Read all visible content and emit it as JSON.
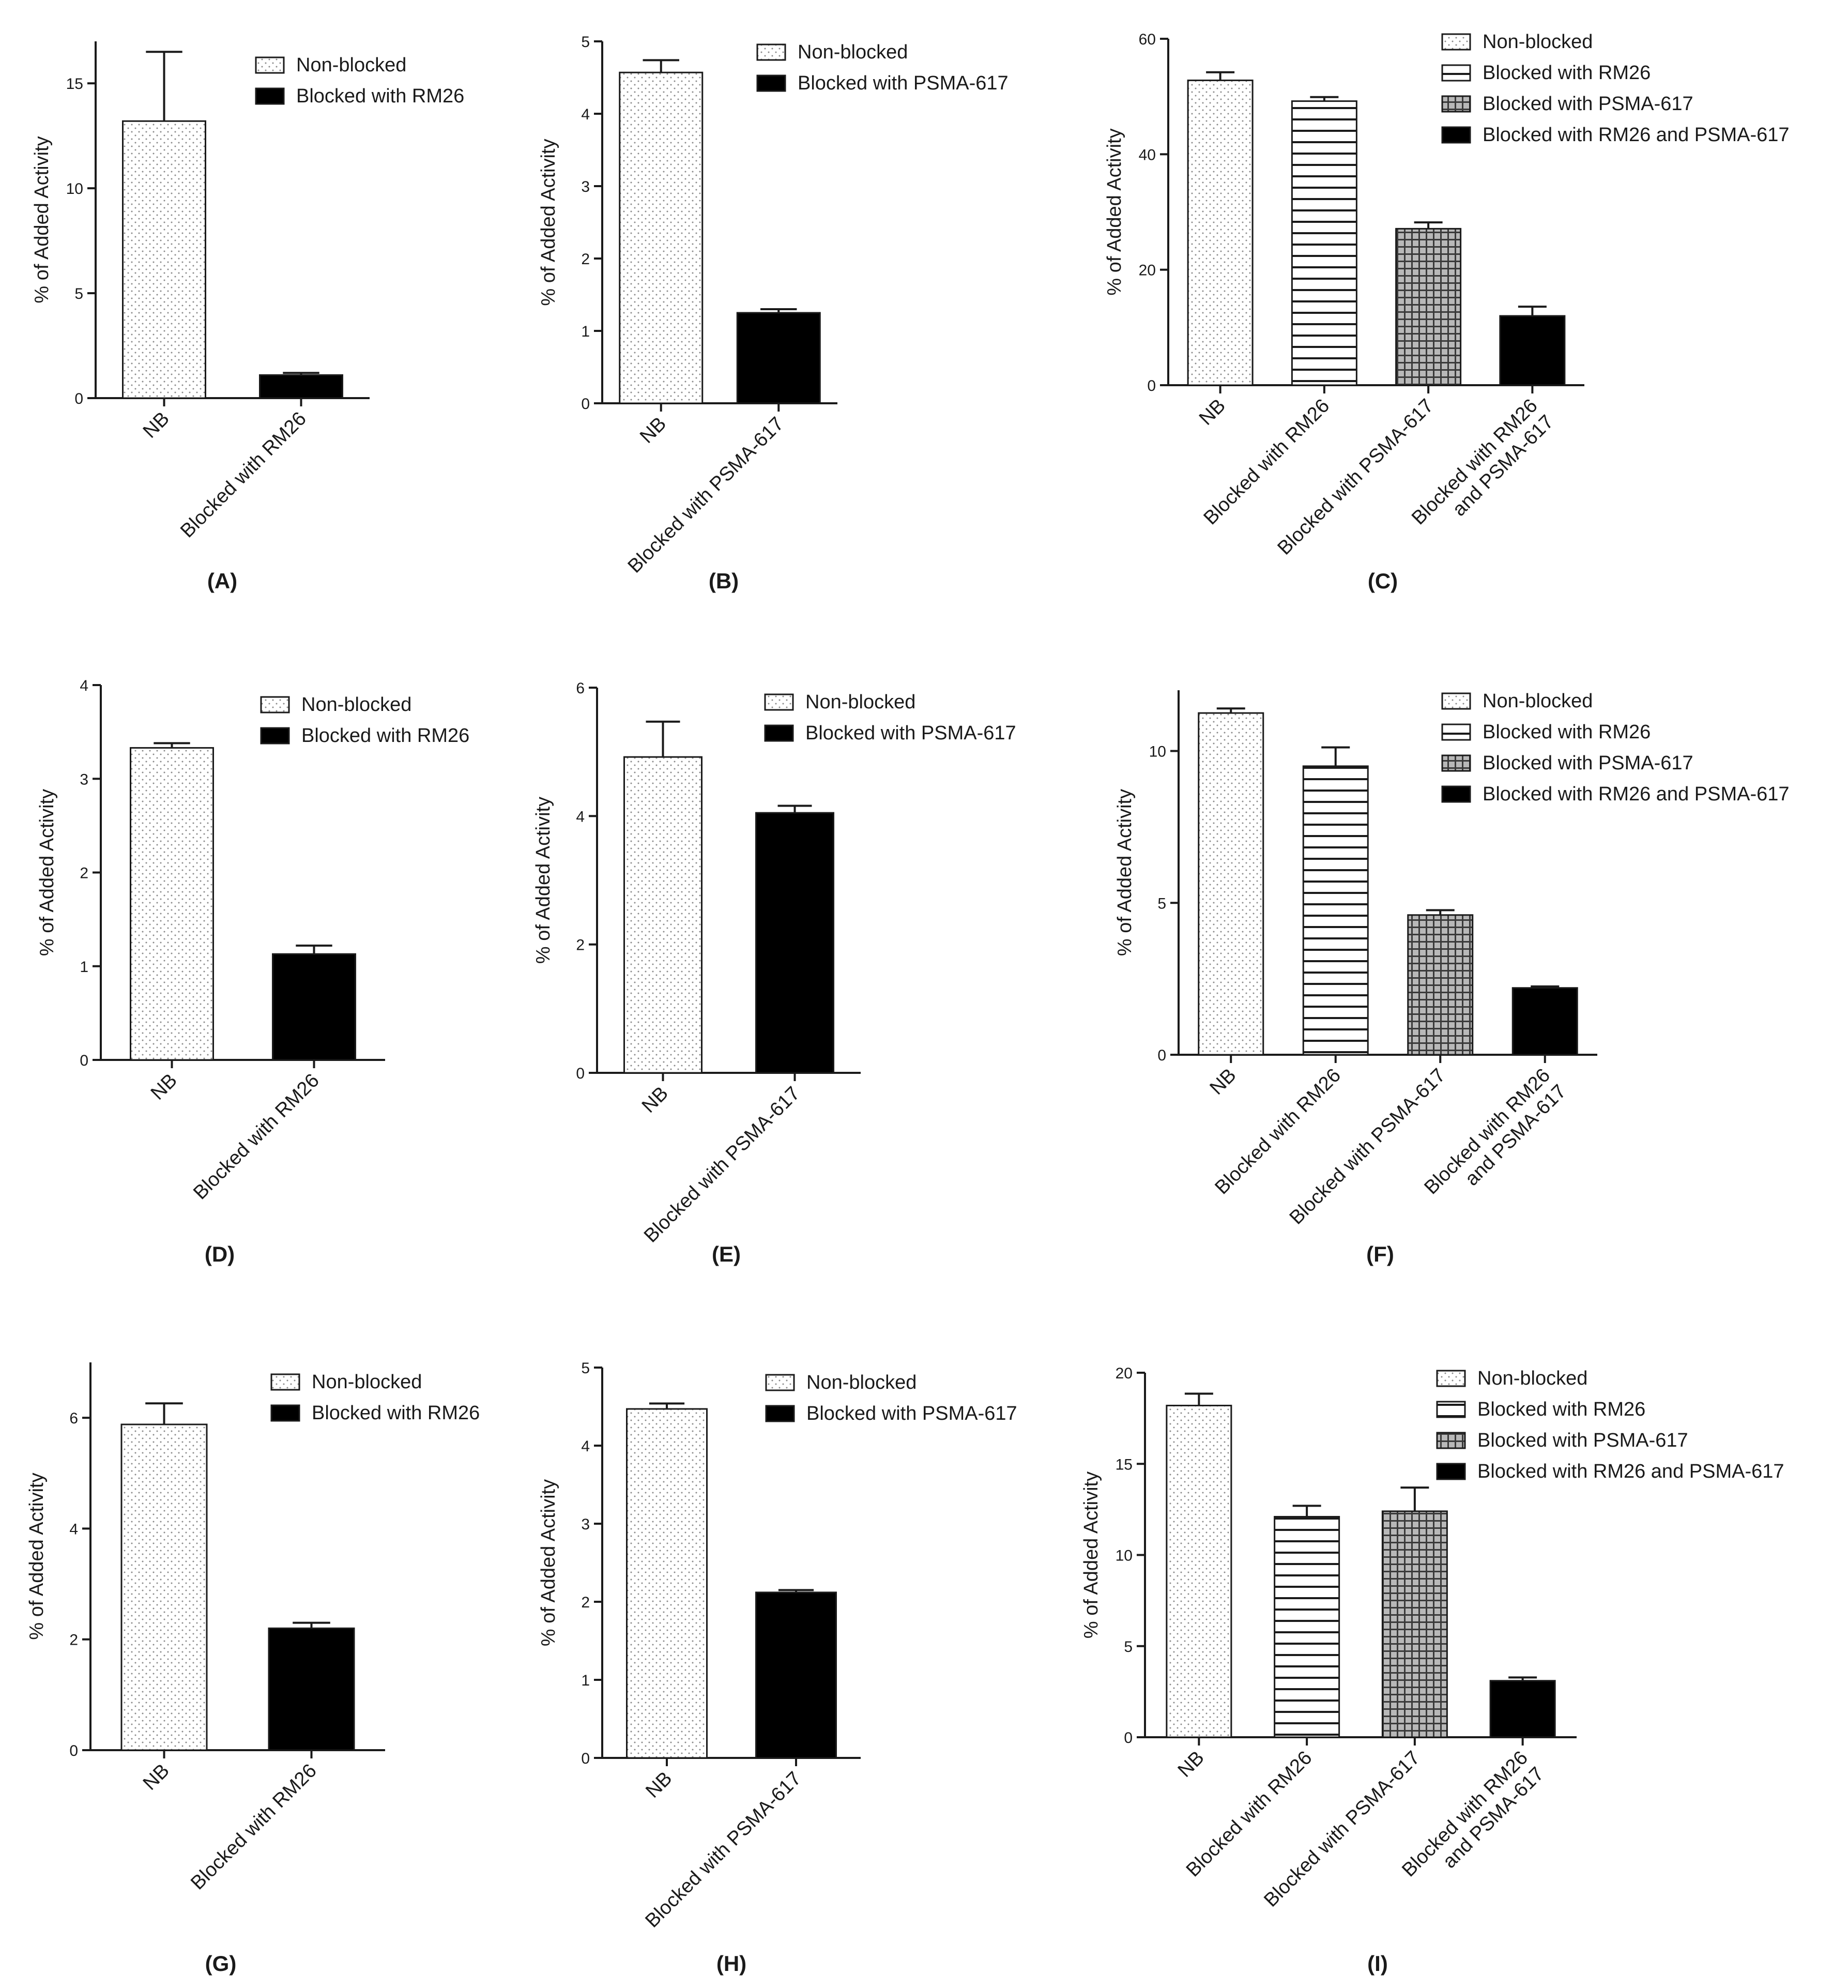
{
  "figure": {
    "panels": [
      "(A)",
      "(B)",
      "(C)",
      "(D)",
      "(E)",
      "(F)",
      "(G)",
      "(H)",
      "(I)"
    ]
  },
  "chart_data": [
    {
      "panel": "(A)",
      "type": "bar",
      "ylabel": "% of Added Activity",
      "ylim": [
        0,
        17
      ],
      "yticks": [
        0,
        5,
        10,
        15
      ],
      "categories": [
        [
          "NB"
        ],
        [
          "Blocked with RM26"
        ]
      ],
      "values": [
        13.2,
        1.1
      ],
      "errors": [
        3.3,
        0.1
      ],
      "fills": [
        "dots",
        "solid"
      ],
      "legend": [
        {
          "label": "Non-blocked",
          "fill": "dots"
        },
        {
          "label": "Blocked with RM26",
          "fill": "solid"
        }
      ]
    },
    {
      "panel": "(B)",
      "type": "bar",
      "ylabel": "% of Added Activity",
      "ylim": [
        0,
        5
      ],
      "yticks": [
        0,
        1,
        2,
        3,
        4,
        5
      ],
      "categories": [
        [
          "NB"
        ],
        [
          "Blocked with PSMA-617"
        ]
      ],
      "values": [
        4.57,
        1.25
      ],
      "errors": [
        0.17,
        0.05
      ],
      "fills": [
        "dots",
        "solid"
      ],
      "legend": [
        {
          "label": "Non-blocked",
          "fill": "dots"
        },
        {
          "label": "Blocked with PSMA-617",
          "fill": "solid"
        }
      ]
    },
    {
      "panel": "(C)",
      "type": "bar",
      "ylabel": "% of Added Activity",
      "ylim": [
        0,
        60
      ],
      "yticks": [
        0,
        20,
        40,
        60
      ],
      "categories": [
        [
          "NB"
        ],
        [
          "Blocked with RM26"
        ],
        [
          "Blocked with PSMA-617"
        ],
        [
          "Blocked with RM26",
          "and PSMA-617"
        ]
      ],
      "values": [
        52.8,
        49.2,
        27.1,
        12.0
      ],
      "errors": [
        1.4,
        0.7,
        1.1,
        1.6
      ],
      "fills": [
        "dots",
        "hlines",
        "grid",
        "solid"
      ],
      "legend": [
        {
          "label": "Non-blocked",
          "fill": "dots"
        },
        {
          "label": "Blocked with RM26",
          "fill": "hlines"
        },
        {
          "label": "Blocked with PSMA-617",
          "fill": "grid"
        },
        {
          "label": "Blocked with RM26 and PSMA-617",
          "fill": "solid"
        }
      ]
    },
    {
      "panel": "(D)",
      "type": "bar",
      "ylabel": "% of Added Activity",
      "ylim": [
        0,
        4
      ],
      "yticks": [
        0,
        1,
        2,
        3,
        4
      ],
      "categories": [
        [
          "NB"
        ],
        [
          "Blocked with RM26"
        ]
      ],
      "values": [
        3.33,
        1.13
      ],
      "errors": [
        0.05,
        0.09
      ],
      "fills": [
        "dots",
        "solid"
      ],
      "legend": [
        {
          "label": "Non-blocked",
          "fill": "dots"
        },
        {
          "label": "Blocked with RM26",
          "fill": "solid"
        }
      ]
    },
    {
      "panel": "(E)",
      "type": "bar",
      "ylabel": "% of Added Activity",
      "ylim": [
        0,
        6
      ],
      "yticks": [
        0,
        2,
        4,
        6
      ],
      "categories": [
        [
          "NB"
        ],
        [
          "Blocked with PSMA-617"
        ]
      ],
      "values": [
        4.92,
        4.05
      ],
      "errors": [
        0.55,
        0.11
      ],
      "fills": [
        "dots",
        "solid"
      ],
      "legend": [
        {
          "label": "Non-blocked",
          "fill": "dots"
        },
        {
          "label": "Blocked with PSMA-617",
          "fill": "solid"
        }
      ]
    },
    {
      "panel": "(F)",
      "type": "bar",
      "ylabel": "% of Added Activity",
      "ylim": [
        0,
        12
      ],
      "yticks": [
        0,
        5,
        10
      ],
      "categories": [
        [
          "NB"
        ],
        [
          "Blocked with RM26"
        ],
        [
          "Blocked with PSMA-617"
        ],
        [
          "Blocked with RM26",
          "and PSMA-617"
        ]
      ],
      "values": [
        11.25,
        9.5,
        4.6,
        2.2
      ],
      "errors": [
        0.15,
        0.62,
        0.16,
        0.05
      ],
      "fills": [
        "dots",
        "hlines",
        "grid",
        "solid"
      ],
      "legend": [
        {
          "label": "Non-blocked",
          "fill": "dots"
        },
        {
          "label": "Blocked with RM26",
          "fill": "hlines"
        },
        {
          "label": "Blocked with PSMA-617",
          "fill": "grid"
        },
        {
          "label": "Blocked with RM26 and PSMA-617",
          "fill": "solid"
        }
      ]
    },
    {
      "panel": "(G)",
      "type": "bar",
      "ylabel": "% of Added Activity",
      "ylim": [
        0,
        7
      ],
      "yticks": [
        0,
        2,
        4,
        6
      ],
      "categories": [
        [
          "NB"
        ],
        [
          "Blocked with RM26"
        ]
      ],
      "values": [
        5.88,
        2.2
      ],
      "errors": [
        0.38,
        0.1
      ],
      "fills": [
        "dots",
        "solid"
      ],
      "legend": [
        {
          "label": "Non-blocked",
          "fill": "dots"
        },
        {
          "label": "Blocked with RM26",
          "fill": "solid"
        }
      ]
    },
    {
      "panel": "(H)",
      "type": "bar",
      "ylabel": "% of Added Activity",
      "ylim": [
        0,
        5
      ],
      "yticks": [
        0,
        1,
        2,
        3,
        4,
        5
      ],
      "categories": [
        [
          "NB"
        ],
        [
          "Blocked with PSMA-617"
        ]
      ],
      "values": [
        4.47,
        2.12
      ],
      "errors": [
        0.07,
        0.03
      ],
      "fills": [
        "dots",
        "solid"
      ],
      "legend": [
        {
          "label": "Non-blocked",
          "fill": "dots"
        },
        {
          "label": "Blocked with PSMA-617",
          "fill": "solid"
        }
      ]
    },
    {
      "panel": "(I)",
      "type": "bar",
      "ylabel": "% of Added Activity",
      "ylim": [
        0,
        20
      ],
      "yticks": [
        0,
        5,
        10,
        15,
        20
      ],
      "categories": [
        [
          "NB"
        ],
        [
          "Blocked with RM26"
        ],
        [
          "Blocked with PSMA-617"
        ],
        [
          "Blocked with RM26",
          "and PSMA-617"
        ]
      ],
      "values": [
        18.2,
        12.1,
        12.4,
        3.1
      ],
      "errors": [
        0.65,
        0.6,
        1.3,
        0.18
      ],
      "fills": [
        "dots",
        "hlines",
        "grid",
        "solid"
      ],
      "legend": [
        {
          "label": "Non-blocked",
          "fill": "dots"
        },
        {
          "label": "Blocked with RM26",
          "fill": "hlines"
        },
        {
          "label": "Blocked with PSMA-617",
          "fill": "grid"
        },
        {
          "label": "Blocked with RM26 and PSMA-617",
          "fill": "solid"
        }
      ]
    }
  ]
}
